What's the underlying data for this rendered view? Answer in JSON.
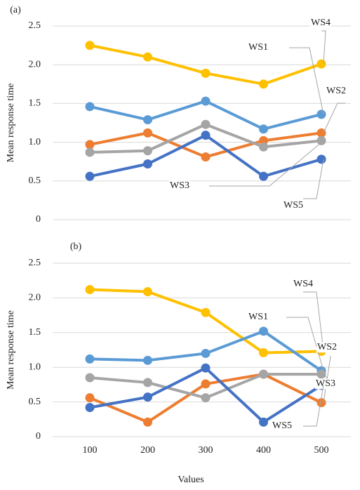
{
  "charts": [
    {
      "chart_data": {
        "type": "line",
        "panel_label": "(a)",
        "ylabel": "Mean response time",
        "ylim": [
          0,
          2.5
        ],
        "yticks": [
          0,
          0.5,
          {
            "value": 1,
            "label": "1.0"
          },
          1.5,
          {
            "value": 2,
            "label": "2.0"
          },
          2.5
        ],
        "grid": true,
        "series": [
          {
            "name": "WS4",
            "color": "#ffc000",
            "values": [
              2.25,
              2.1,
              1.89,
              1.75,
              2.01
            ]
          },
          {
            "name": "WS1",
            "color": "#5b9bd5",
            "values": [
              1.46,
              1.29,
              1.53,
              1.17,
              1.36
            ]
          },
          {
            "name": "WS2",
            "color": "#ed7d31",
            "values": [
              0.97,
              1.12,
              0.81,
              1.02,
              1.12
            ]
          },
          {
            "name": "WS3",
            "color": "#a5a5a5",
            "values": [
              0.87,
              0.89,
              1.23,
              0.94,
              1.02
            ]
          },
          {
            "name": "WS5",
            "color": "#4472c4",
            "values": [
              0.56,
              0.72,
              1.09,
              0.56,
              0.78
            ]
          }
        ]
      }
    },
    {
      "chart_data": {
        "type": "line",
        "panel_label": "(b)",
        "ylabel": "Mean response time",
        "xlabel": "Values",
        "x": [
          100,
          200,
          300,
          400,
          500
        ],
        "ylim": [
          0,
          2.5
        ],
        "yticks": [
          0,
          0.5,
          {
            "value": 1,
            "label": "1.0"
          },
          1.5,
          {
            "value": 2,
            "label": "2.0"
          },
          2.5
        ],
        "grid": true,
        "series": [
          {
            "name": "WS4",
            "color": "#ffc000",
            "values": [
              2.12,
              2.09,
              1.79,
              1.21,
              1.23
            ]
          },
          {
            "name": "WS1",
            "color": "#5b9bd5",
            "values": [
              1.12,
              1.1,
              1.2,
              1.52,
              0.95
            ]
          },
          {
            "name": "WS2",
            "color": "#ed7d31",
            "values": [
              0.56,
              0.21,
              0.76,
              0.9,
              0.49
            ]
          },
          {
            "name": "WS3",
            "color": "#a5a5a5",
            "values": [
              0.85,
              0.78,
              0.56,
              0.9,
              0.9
            ]
          },
          {
            "name": "WS5",
            "color": "#4472c4",
            "values": [
              0.42,
              0.57,
              0.99,
              0.21,
              0.74
            ]
          }
        ]
      }
    }
  ]
}
